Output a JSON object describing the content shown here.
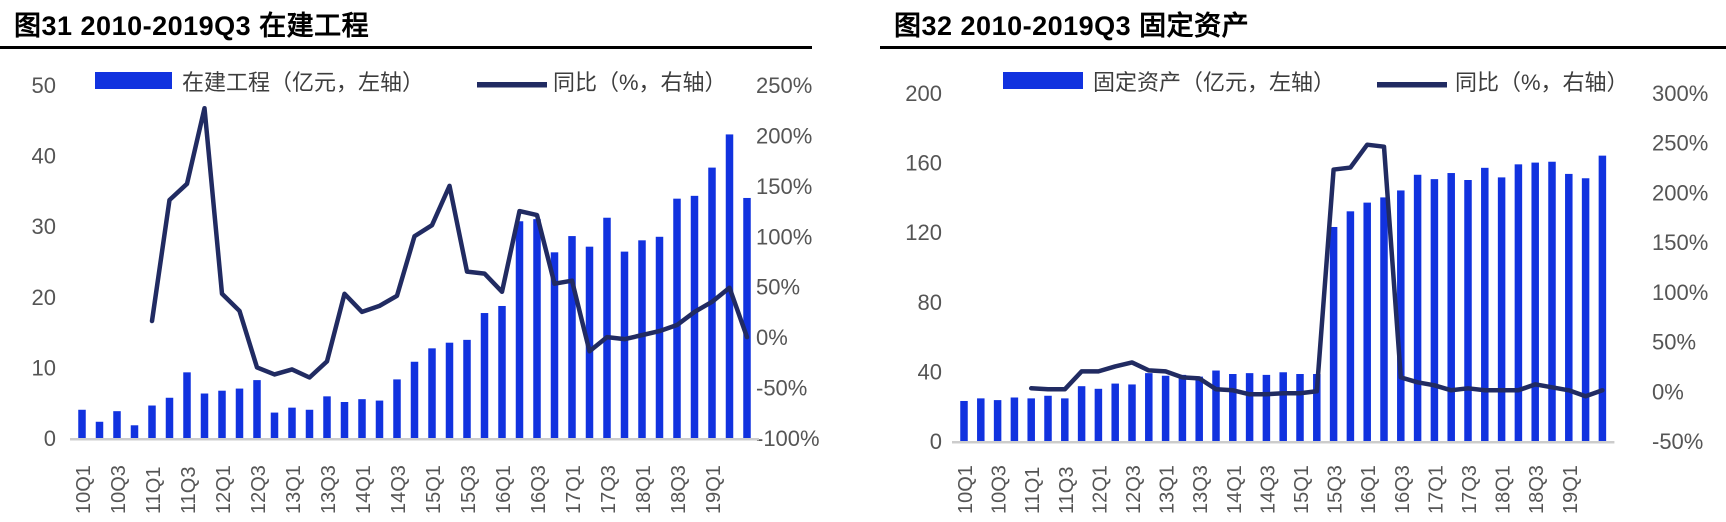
{
  "colors": {
    "bar": "#1132DF",
    "line": "#212B62",
    "axis_text": "#555555",
    "legend_text": "#3d3d3d",
    "baseline": "#cccccc",
    "title": "#000000"
  },
  "chart_data": [
    {
      "type": "combo-bar-line",
      "title": "图31 2010-2019Q3 在建工程",
      "categories": [
        "10Q1",
        "10Q2",
        "10Q3",
        "10Q4",
        "11Q1",
        "11Q2",
        "11Q3",
        "11Q4",
        "12Q1",
        "12Q2",
        "12Q3",
        "12Q4",
        "13Q1",
        "13Q2",
        "13Q3",
        "13Q4",
        "14Q1",
        "14Q2",
        "14Q3",
        "14Q4",
        "15Q1",
        "15Q2",
        "15Q3",
        "15Q4",
        "16Q1",
        "16Q2",
        "16Q3",
        "16Q4",
        "17Q1",
        "17Q2",
        "17Q3",
        "17Q4",
        "18Q1",
        "18Q2",
        "18Q3",
        "18Q4",
        "19Q1",
        "19Q2",
        "19Q3"
      ],
      "x_tick_labels": [
        "10Q1",
        "10Q3",
        "11Q1",
        "11Q3",
        "12Q1",
        "12Q3",
        "13Q1",
        "13Q3",
        "14Q1",
        "14Q3",
        "15Q1",
        "15Q3",
        "16Q1",
        "16Q3",
        "17Q1",
        "17Q3",
        "18Q1",
        "18Q3",
        "19Q1"
      ],
      "series": [
        {
          "name": "在建工程（亿元，左轴）",
          "kind": "bar",
          "axis": "left",
          "values": [
            4.0,
            2.3,
            3.8,
            1.8,
            4.6,
            5.7,
            9.3,
            6.3,
            6.7,
            7.0,
            8.2,
            3.6,
            4.3,
            4.0,
            5.9,
            5.1,
            5.5,
            5.3,
            8.3,
            10.8,
            12.7,
            13.5,
            13.9,
            17.7,
            18.7,
            30.7,
            31.0,
            26.3,
            28.6,
            27.1,
            31.2,
            26.4,
            28.0,
            28.5,
            33.9,
            34.3,
            38.3,
            43.0,
            34.0
          ]
        },
        {
          "name": "同比（%，右轴）",
          "kind": "line",
          "axis": "right",
          "values": [
            null,
            null,
            null,
            null,
            16,
            136,
            152,
            227,
            43,
            26,
            -30,
            -37,
            -32,
            -40,
            -24,
            43,
            25,
            31,
            41,
            100,
            111,
            150,
            65,
            63,
            45,
            125,
            121,
            53,
            56,
            -14,
            0,
            -2,
            2,
            6,
            12,
            25,
            35,
            49,
            0
          ]
        }
      ],
      "left_axis": {
        "min": 0,
        "max": 50,
        "ticks": [
          "0",
          "10",
          "20",
          "30",
          "40",
          "50"
        ]
      },
      "right_axis": {
        "min": -100,
        "max": 250,
        "ticks_top_to_bottom": [
          "250%",
          "200%",
          "150%",
          "100%",
          "50%",
          "0%",
          "-50%",
          "-100%"
        ]
      },
      "grid": false,
      "legend_position": "top"
    },
    {
      "type": "combo-bar-line",
      "title": "图32 2010-2019Q3 固定资产",
      "categories": [
        "10Q1",
        "10Q2",
        "10Q3",
        "10Q4",
        "11Q1",
        "11Q2",
        "11Q3",
        "11Q4",
        "12Q1",
        "12Q2",
        "12Q3",
        "12Q4",
        "13Q1",
        "13Q2",
        "13Q3",
        "13Q4",
        "14Q1",
        "14Q2",
        "14Q3",
        "14Q4",
        "15Q1",
        "15Q2",
        "15Q3",
        "15Q4",
        "16Q1",
        "16Q2",
        "16Q3",
        "16Q4",
        "17Q1",
        "17Q2",
        "17Q3",
        "17Q4",
        "18Q1",
        "18Q2",
        "18Q3",
        "18Q4",
        "19Q1",
        "19Q2",
        "19Q3"
      ],
      "x_tick_labels": [
        "10Q1",
        "10Q3",
        "11Q1",
        "11Q3",
        "12Q1",
        "12Q3",
        "13Q1",
        "13Q3",
        "14Q1",
        "14Q3",
        "15Q1",
        "15Q3",
        "16Q1",
        "16Q3",
        "17Q1",
        "17Q3",
        "18Q1",
        "18Q3",
        "19Q1"
      ],
      "series": [
        {
          "name": "固定资产（亿元，左轴）",
          "kind": "bar",
          "axis": "left",
          "values": [
            23,
            24.5,
            23.5,
            25,
            24.5,
            26,
            24.5,
            31.5,
            30,
            33,
            32.5,
            39,
            37.5,
            38,
            37,
            40.5,
            38.5,
            39,
            38,
            39.5,
            38.5,
            38.5,
            123,
            132,
            137,
            140,
            144,
            153,
            150.5,
            154,
            150,
            157,
            151.5,
            159,
            160,
            160.5,
            153.5,
            151,
            164
          ]
        },
        {
          "name": "同比（%，右轴）",
          "kind": "line",
          "axis": "right",
          "values": [
            null,
            null,
            null,
            null,
            3,
            2,
            2,
            20,
            20,
            25,
            29,
            21,
            20,
            14,
            13,
            2,
            1,
            -3,
            -3,
            -2,
            -2,
            0,
            223,
            225,
            248,
            246,
            14,
            9,
            6,
            1,
            3,
            1,
            1,
            1,
            7,
            4,
            1,
            -5,
            1
          ]
        }
      ],
      "left_axis": {
        "min": 0,
        "max": 200,
        "ticks": [
          "0",
          "40",
          "80",
          "120",
          "160",
          "200"
        ]
      },
      "right_axis": {
        "min": -50,
        "max": 300,
        "ticks_top_to_bottom": [
          "300%",
          "250%",
          "200%",
          "150%",
          "100%",
          "50%",
          "0%",
          "-50%"
        ]
      },
      "grid": false,
      "legend_position": "top"
    }
  ]
}
